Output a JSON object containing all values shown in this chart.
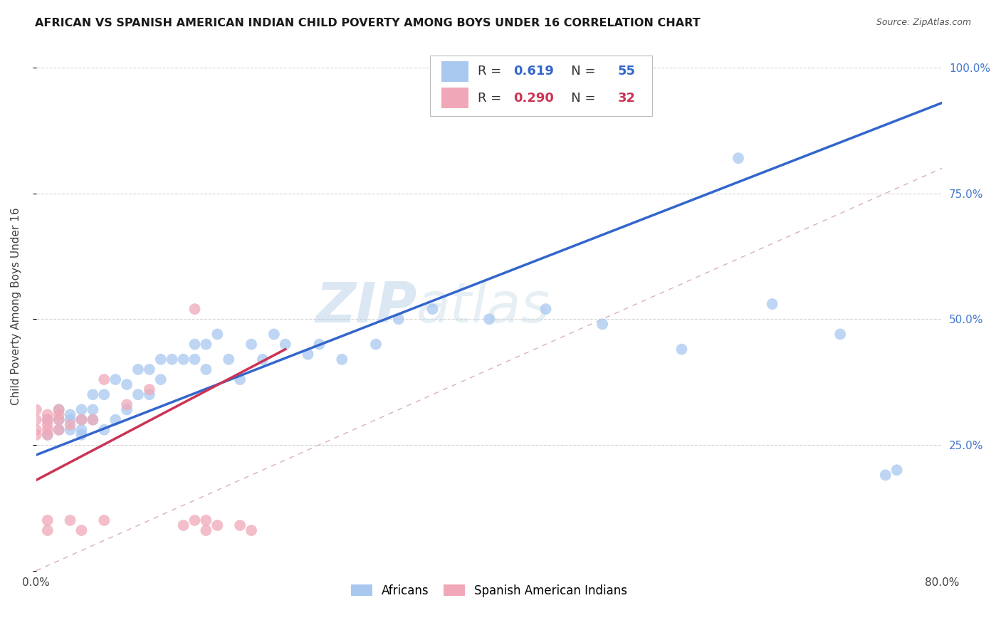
{
  "title": "AFRICAN VS SPANISH AMERICAN INDIAN CHILD POVERTY AMONG BOYS UNDER 16 CORRELATION CHART",
  "source": "Source: ZipAtlas.com",
  "ylabel": "Child Poverty Among Boys Under 16",
  "xlim": [
    0,
    0.8
  ],
  "ylim": [
    0,
    1.05
  ],
  "blue_R": 0.619,
  "blue_N": 55,
  "pink_R": 0.29,
  "pink_N": 32,
  "watermark": "ZIPatlas",
  "blue_color": "#a8c8f0",
  "pink_color": "#f0a8b8",
  "blue_line_color": "#3366cc",
  "pink_line_color": "#cc3355",
  "diagonal_color": "#d8b0b8",
  "blue_line_x0": 0.0,
  "blue_line_y0": 0.23,
  "blue_line_x1": 0.8,
  "blue_line_y1": 0.93,
  "pink_line_x0": 0.0,
  "pink_line_y0": 0.18,
  "pink_line_x1": 0.22,
  "pink_line_y1": 0.44,
  "blue_scatter_x": [
    0.01,
    0.01,
    0.02,
    0.02,
    0.02,
    0.03,
    0.03,
    0.03,
    0.04,
    0.04,
    0.04,
    0.04,
    0.05,
    0.05,
    0.05,
    0.06,
    0.06,
    0.07,
    0.07,
    0.08,
    0.08,
    0.09,
    0.09,
    0.1,
    0.1,
    0.11,
    0.11,
    0.12,
    0.13,
    0.14,
    0.14,
    0.15,
    0.15,
    0.16,
    0.17,
    0.18,
    0.19,
    0.2,
    0.21,
    0.22,
    0.24,
    0.25,
    0.27,
    0.3,
    0.32,
    0.35,
    0.4,
    0.45,
    0.5,
    0.57,
    0.62,
    0.65,
    0.71,
    0.75,
    0.76
  ],
  "blue_scatter_y": [
    0.27,
    0.3,
    0.28,
    0.3,
    0.32,
    0.28,
    0.3,
    0.31,
    0.27,
    0.28,
    0.3,
    0.32,
    0.3,
    0.32,
    0.35,
    0.28,
    0.35,
    0.3,
    0.38,
    0.32,
    0.37,
    0.35,
    0.4,
    0.35,
    0.4,
    0.42,
    0.38,
    0.42,
    0.42,
    0.45,
    0.42,
    0.45,
    0.4,
    0.47,
    0.42,
    0.38,
    0.45,
    0.42,
    0.47,
    0.45,
    0.43,
    0.45,
    0.42,
    0.45,
    0.5,
    0.52,
    0.5,
    0.52,
    0.49,
    0.44,
    0.82,
    0.53,
    0.47,
    0.19,
    0.2
  ],
  "pink_scatter_x": [
    0.0,
    0.0,
    0.0,
    0.0,
    0.01,
    0.01,
    0.01,
    0.01,
    0.01,
    0.01,
    0.01,
    0.02,
    0.02,
    0.02,
    0.02,
    0.03,
    0.03,
    0.04,
    0.04,
    0.05,
    0.06,
    0.06,
    0.08,
    0.1,
    0.13,
    0.14,
    0.14,
    0.15,
    0.15,
    0.16,
    0.18,
    0.19
  ],
  "pink_scatter_y": [
    0.27,
    0.28,
    0.3,
    0.32,
    0.27,
    0.29,
    0.31,
    0.28,
    0.3,
    0.08,
    0.1,
    0.3,
    0.31,
    0.32,
    0.28,
    0.29,
    0.1,
    0.3,
    0.08,
    0.3,
    0.38,
    0.1,
    0.33,
    0.36,
    0.09,
    0.1,
    0.52,
    0.1,
    0.08,
    0.09,
    0.09,
    0.08
  ]
}
